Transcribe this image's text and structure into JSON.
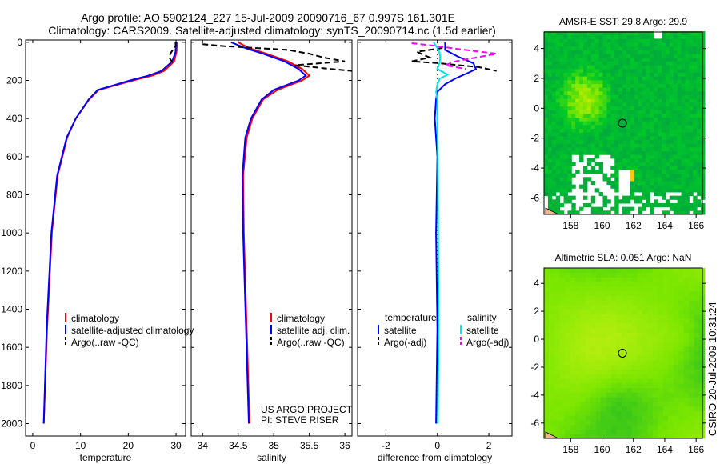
{
  "title_line1": "Argo profile: AO 5902124_227 15-Jul-2009 20090716_67 0.997S 161.301E",
  "title_line2": "Climatology: CARS2009. Satellite-adjusted climatology: synTS_20090714.nc (1.5d earlier)",
  "side_stamp": "CSIRO 20-Jul-2009 10:31:24",
  "colors": {
    "climatology": "#ff0000",
    "satellite": "#0000ff",
    "argo": "#000000",
    "sal_satellite": "#00e5ee",
    "sal_argo": "#ff00ff"
  },
  "chart_data": [
    {
      "type": "line",
      "xlabel": "temperature",
      "ylabel": "",
      "xlim": [
        -1.5,
        32
      ],
      "ylim": [
        2065,
        -12
      ],
      "xticks": [
        0,
        10,
        20,
        30
      ],
      "yticks": [
        0,
        200,
        400,
        600,
        800,
        1000,
        1200,
        1400,
        1600,
        1800,
        2000
      ],
      "legend": [
        "climatology",
        "satellite-adjusted climatology",
        "Argo(..raw -QC)"
      ],
      "legend_placement": "lower-right",
      "series": [
        {
          "name": "climatology",
          "color": "#ff0000",
          "dash": false,
          "depth": [
            0,
            50,
            100,
            150,
            175,
            200,
            250,
            300,
            400,
            500,
            700,
            1000,
            1500,
            2000
          ],
          "values": [
            30.2,
            30.1,
            29.6,
            27.5,
            25,
            21,
            13.8,
            11.8,
            9,
            7.2,
            5.2,
            4,
            3,
            2.3
          ]
        },
        {
          "name": "satellite-adjusted climatology",
          "color": "#0000ff",
          "dash": false,
          "depth": [
            0,
            50,
            100,
            150,
            175,
            200,
            250,
            300,
            400,
            500,
            700,
            1000,
            1500,
            2000
          ],
          "values": [
            30.0,
            29.9,
            29.2,
            27,
            24.2,
            20.4,
            13.6,
            11.7,
            9,
            7.1,
            5.1,
            3.9,
            2.9,
            2.3
          ]
        },
        {
          "name": "Argo(..raw -QC)",
          "color": "#000000",
          "dash": true,
          "depth": [
            0,
            20,
            40,
            60,
            80,
            100,
            120
          ],
          "values": [
            29.9,
            29.9,
            29.3,
            28.8,
            28.6,
            29.1,
            29.5
          ]
        }
      ]
    },
    {
      "type": "line",
      "xlabel": "salinity",
      "xlim": [
        33.84,
        36.1
      ],
      "ylim": [
        2065,
        -12
      ],
      "xticks": [
        34,
        34.5,
        35,
        35.5,
        36
      ],
      "legend": [
        "climatology",
        "satellite adj. clim.",
        "Argo(..raw -QC)"
      ],
      "legend_placement": "lower-right",
      "annotation": [
        "US ARGO PROJECT",
        "PI: STEVE RISER"
      ],
      "series": [
        {
          "name": "climatology",
          "color": "#ff0000",
          "dash": false,
          "depth": [
            0,
            30,
            60,
            100,
            140,
            175,
            200,
            250,
            300,
            400,
            500,
            700,
            1000,
            1500,
            2000
          ],
          "values": [
            34.5,
            34.65,
            34.9,
            35.2,
            35.4,
            35.5,
            35.4,
            35.05,
            34.85,
            34.7,
            34.62,
            34.57,
            34.58,
            34.62,
            34.66
          ]
        },
        {
          "name": "satellite adj. clim.",
          "color": "#0000ff",
          "dash": false,
          "depth": [
            0,
            30,
            60,
            100,
            140,
            175,
            200,
            250,
            300,
            400,
            500,
            700,
            1000,
            1500,
            2000
          ],
          "values": [
            34.4,
            34.6,
            34.85,
            35.15,
            35.35,
            35.45,
            35.35,
            35.0,
            34.83,
            34.68,
            34.6,
            34.56,
            34.57,
            34.61,
            34.65
          ]
        },
        {
          "name": "Argo(..raw -QC)",
          "color": "#000000",
          "dash": true,
          "depth": [
            10,
            20,
            40,
            60,
            80,
            100,
            120,
            140,
            150
          ],
          "values": [
            34.0,
            34.3,
            35.2,
            35.5,
            35.7,
            36.0,
            35.3,
            35.8,
            36.1
          ]
        }
      ]
    },
    {
      "type": "line",
      "xlabel": "difference from climatology",
      "xlim": [
        -3.1,
        2.9
      ],
      "ylim": [
        2065,
        -12
      ],
      "xticks": [
        -2,
        0,
        2
      ],
      "legend_headers": [
        "temperature",
        "salinity"
      ],
      "legend": [
        "satellite",
        "Argo(-adj)",
        "satellite",
        "Argo(-adj)"
      ],
      "legend_placement": "lower-center",
      "series": [
        {
          "name": "temperature satellite",
          "color": "#0000ff",
          "dash": false,
          "depth": [
            0,
            40,
            75,
            110,
            140,
            160,
            190,
            220,
            260,
            300,
            400,
            600,
            1000,
            1500,
            2000
          ],
          "values": [
            0.3,
            0.3,
            0.8,
            1.4,
            1.5,
            1.2,
            0.7,
            0.3,
            0,
            -0.05,
            -0.1,
            0,
            -0.05,
            0,
            -0.05
          ]
        },
        {
          "name": "temperature Argo(-adj)",
          "color": "#000000",
          "dash": true,
          "depth": [
            30,
            50,
            80,
            100,
            110,
            120,
            130,
            150
          ],
          "values": [
            0.2,
            -0.8,
            -0.3,
            -1.0,
            0.1,
            0.8,
            1.6,
            2.3
          ]
        },
        {
          "name": "salinity satellite",
          "color": "#00e5ee",
          "dash": false,
          "depth": [
            0,
            30,
            60,
            100,
            140,
            170,
            190,
            220,
            260,
            300,
            400,
            600,
            1000,
            1500,
            2000
          ],
          "values": [
            -0.15,
            0,
            0.1,
            0.1,
            0.0,
            0.4,
            0.1,
            0.0,
            -0.05,
            0,
            0,
            0.02,
            0.03,
            0.05,
            0.02
          ]
        },
        {
          "name": "salinity Argo(-adj)",
          "color": "#ff00ff",
          "dash": true,
          "depth": [
            5,
            15,
            35,
            60,
            80,
            100,
            120,
            140
          ],
          "values": [
            -1.0,
            -0.3,
            0.8,
            2.3,
            1.5,
            0.7,
            0.3,
            1.1
          ]
        }
      ]
    },
    {
      "type": "heatmap",
      "title": "AMSR-E SST: 29.8 Argo: 29.9",
      "xlim": [
        156.3,
        166.4
      ],
      "ylim": [
        -7.1,
        5.1
      ],
      "xticks": [
        158,
        160,
        162,
        164,
        166
      ],
      "yticks": [
        -6,
        -4,
        -2,
        0,
        2,
        4
      ],
      "marker": {
        "lon": 161.3,
        "lat": -1.0
      }
    },
    {
      "type": "heatmap",
      "title": "Altimetric SLA: 0.051 Argo: NaN",
      "xlim": [
        156.3,
        166.4
      ],
      "ylim": [
        -7.1,
        5.1
      ],
      "xticks": [
        158,
        160,
        162,
        164,
        166
      ],
      "yticks": [
        -6,
        -4,
        -2,
        0,
        2,
        4
      ],
      "marker": {
        "lon": 161.3,
        "lat": -1.0
      }
    }
  ]
}
